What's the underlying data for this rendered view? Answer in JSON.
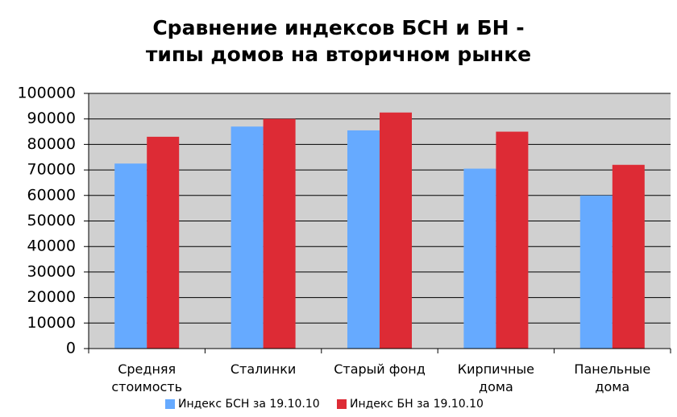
{
  "chart_data": {
    "type": "bar",
    "title": "Сравнение индексов БСН и БН -\nтипы домов на вторичном рынке",
    "categories": [
      "Средняя\nстоимость",
      "Сталинки",
      "Старый фонд",
      "Кирпичные\nдома",
      "Панельные\nдома"
    ],
    "series": [
      {
        "name": "Индекс БСН за 19.10.10",
        "color": "#66aaff",
        "values": [
          72500,
          87000,
          85500,
          70500,
          60000
        ]
      },
      {
        "name": "Индекс БН за 19.10.10",
        "color": "#dd2b35",
        "values": [
          83000,
          90000,
          92500,
          85000,
          72000
        ]
      }
    ],
    "ylim": [
      0,
      100000
    ],
    "yticks": [
      0,
      10000,
      20000,
      30000,
      40000,
      50000,
      60000,
      70000,
      80000,
      90000,
      100000
    ],
    "grid": true
  }
}
